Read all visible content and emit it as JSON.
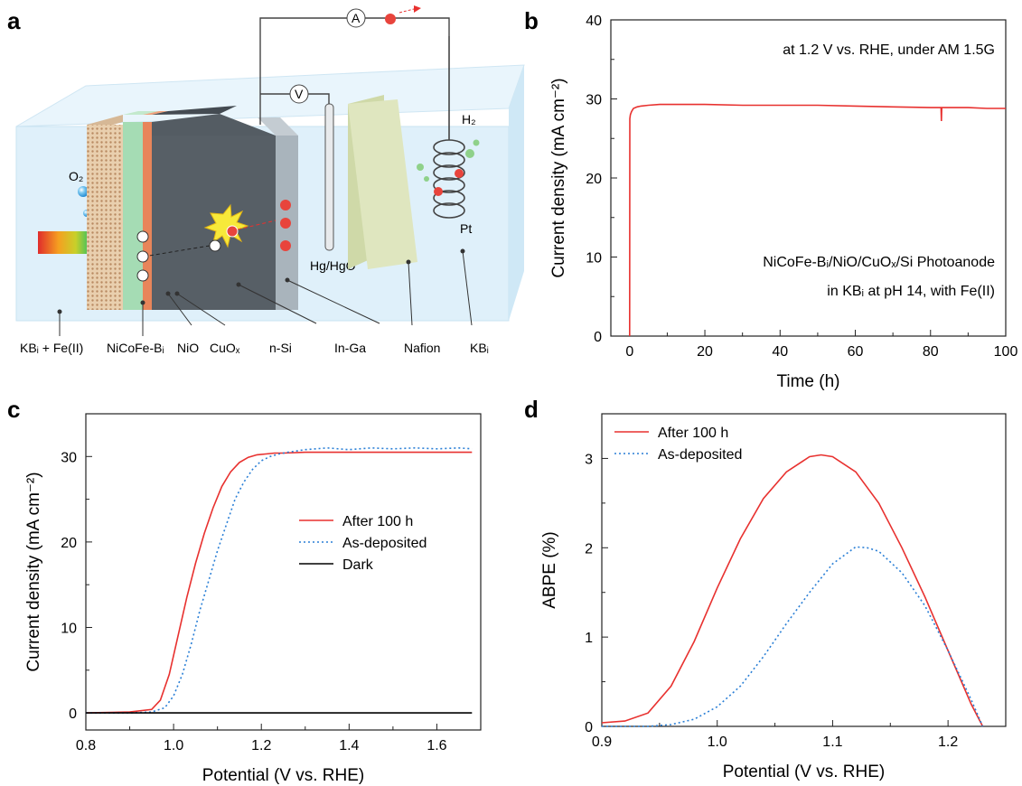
{
  "panel_letters": {
    "a": "a",
    "b": "b",
    "c": "c",
    "d": "d"
  },
  "schematic": {
    "labels": {
      "electrolyte_left": "KBᵢ + Fe(II)",
      "catalyst": "NiCoFe-Bᵢ",
      "nio": "NiO",
      "cuox": "CuOₓ",
      "nsi": "n-Si",
      "inga": "In-Ga",
      "nafion": "Nafion",
      "electrolyte_right": "KBᵢ",
      "reference": "Hg/HgO",
      "counter": "Pt",
      "o2": "O₂",
      "h2": "H₂",
      "voltmeter": "V",
      "ammeter": "A"
    },
    "colors": {
      "electrolyte": "#dff0fa",
      "catalyst": "#e8c8a8",
      "nio": "#a5dcb4",
      "cuox": "#e8855a",
      "nsi": "#545c63",
      "inga": "#a9b4bc",
      "nafion": "#dfe6bf"
    }
  },
  "chart_data": [
    {
      "id": "b",
      "type": "line",
      "xlabel": "Time (h)",
      "ylabel": "Current density (mA cm⁻²)",
      "xlim": [
        -5,
        100
      ],
      "ylim": [
        0,
        40
      ],
      "xticks": [
        0,
        20,
        40,
        60,
        80,
        100
      ],
      "yticks": [
        0,
        10,
        20,
        30,
        40
      ],
      "annotations": [
        "at 1.2 V vs. RHE, under AM 1.5G",
        "NiCoFe-Bᵢ/NiO/CuOₓ/Si Photoanode",
        "in KBᵢ at pH 14, with Fe(II)"
      ],
      "series": [
        {
          "color": "#e8312f",
          "x": [
            0,
            0.05,
            0.2,
            0.5,
            1,
            2,
            3,
            5,
            8,
            10,
            15,
            20,
            30,
            40,
            50,
            60,
            70,
            80,
            82.8,
            82.9,
            83.0,
            85,
            90,
            95,
            100
          ],
          "y": [
            0,
            27.5,
            28.0,
            28.4,
            28.8,
            29.0,
            29.1,
            29.2,
            29.3,
            29.3,
            29.3,
            29.3,
            29.2,
            29.2,
            29.2,
            29.1,
            29.0,
            28.9,
            28.9,
            27.2,
            28.9,
            28.9,
            28.9,
            28.8,
            28.8
          ]
        }
      ]
    },
    {
      "id": "c",
      "type": "line",
      "xlabel": "Potential (V vs. RHE)",
      "ylabel": "Current density (mA cm⁻²)",
      "xlim": [
        0.8,
        1.7
      ],
      "ylim": [
        -2,
        35
      ],
      "xticks": [
        0.8,
        1.0,
        1.2,
        1.4,
        1.6
      ],
      "yticks": [
        0,
        10,
        20,
        30
      ],
      "legend_position": "center-right",
      "series": [
        {
          "name": "After 100 h",
          "color": "#e8312f",
          "style": "solid",
          "x": [
            0.8,
            0.9,
            0.95,
            0.97,
            0.99,
            1.01,
            1.03,
            1.05,
            1.07,
            1.09,
            1.11,
            1.13,
            1.15,
            1.17,
            1.19,
            1.21,
            1.23,
            1.25,
            1.3,
            1.4,
            1.5,
            1.6,
            1.68
          ],
          "y": [
            0,
            0.1,
            0.4,
            1.5,
            4.5,
            9.0,
            13.5,
            17.5,
            21.0,
            24.0,
            26.5,
            28.2,
            29.3,
            29.9,
            30.2,
            30.3,
            30.4,
            30.4,
            30.5,
            30.5,
            30.5,
            30.5,
            30.5
          ]
        },
        {
          "name": "As-deposited",
          "color": "#2a7fd6",
          "style": "dotted",
          "x": [
            0.8,
            0.9,
            0.95,
            0.98,
            1.0,
            1.02,
            1.04,
            1.06,
            1.08,
            1.1,
            1.12,
            1.14,
            1.16,
            1.18,
            1.2,
            1.22,
            1.24,
            1.26,
            1.3,
            1.35,
            1.4,
            1.45,
            1.5,
            1.55,
            1.6,
            1.65,
            1.68
          ],
          "y": [
            0,
            0.0,
            0.1,
            0.6,
            2.0,
            4.5,
            8.0,
            12.0,
            15.5,
            19.0,
            22.0,
            25.0,
            27.0,
            28.5,
            29.5,
            30.0,
            30.3,
            30.5,
            30.8,
            31.0,
            30.8,
            31.0,
            30.9,
            31.0,
            30.9,
            31.0,
            30.9
          ]
        },
        {
          "name": "Dark",
          "color": "#000000",
          "style": "solid",
          "x": [
            0.8,
            1.68
          ],
          "y": [
            0,
            0
          ]
        }
      ]
    },
    {
      "id": "d",
      "type": "line",
      "xlabel": "Potential (V vs. RHE)",
      "ylabel": "ABPE (%)",
      "xlim": [
        0.9,
        1.25
      ],
      "ylim": [
        0,
        3.5
      ],
      "xticks": [
        0.9,
        1.0,
        1.1,
        1.2
      ],
      "yticks": [
        0,
        1,
        2,
        3
      ],
      "legend_position": "top-left",
      "series": [
        {
          "name": "After 100 h",
          "color": "#e8312f",
          "style": "solid",
          "x": [
            0.9,
            0.92,
            0.94,
            0.96,
            0.98,
            1.0,
            1.02,
            1.04,
            1.06,
            1.08,
            1.09,
            1.1,
            1.12,
            1.14,
            1.16,
            1.18,
            1.2,
            1.22,
            1.23
          ],
          "y": [
            0.04,
            0.06,
            0.15,
            0.45,
            0.95,
            1.55,
            2.1,
            2.55,
            2.85,
            3.02,
            3.04,
            3.02,
            2.85,
            2.5,
            2.0,
            1.45,
            0.85,
            0.25,
            0.0
          ]
        },
        {
          "name": "As-deposited",
          "color": "#2a7fd6",
          "style": "dotted",
          "x": [
            0.9,
            0.94,
            0.96,
            0.98,
            1.0,
            1.02,
            1.04,
            1.06,
            1.08,
            1.1,
            1.12,
            1.13,
            1.14,
            1.16,
            1.18,
            1.2,
            1.22,
            1.23
          ],
          "y": [
            0.0,
            0.0,
            0.02,
            0.08,
            0.22,
            0.45,
            0.78,
            1.15,
            1.5,
            1.82,
            2.01,
            2.0,
            1.96,
            1.72,
            1.35,
            0.85,
            0.3,
            0.0
          ]
        }
      ]
    }
  ]
}
